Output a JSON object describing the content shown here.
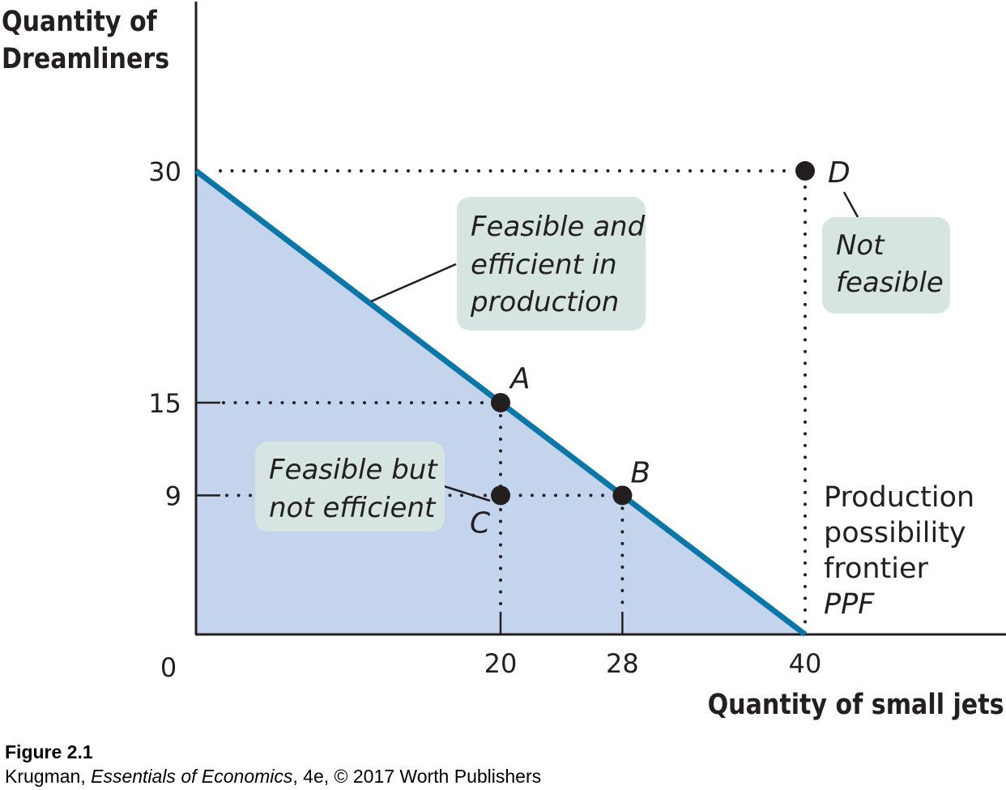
{
  "chart_data": {
    "type": "line",
    "xlabel": "Quantity of small jets",
    "ylabel_lines": [
      "Quantity of",
      "Dreamliners"
    ],
    "xlim": [
      0,
      40
    ],
    "ylim": [
      0,
      30
    ],
    "origin_label": "0",
    "x_ticks": [
      20,
      28,
      40
    ],
    "y_ticks": [
      30,
      15,
      9
    ],
    "series": [
      {
        "label": "Production possibility frontier PPF",
        "x": [
          0,
          40
        ],
        "y": [
          30,
          0
        ]
      }
    ],
    "frontier_label_lines": [
      "Production",
      "possibility",
      "frontier",
      "PPF"
    ],
    "points": [
      {
        "label": "A",
        "x": 20,
        "y": 15
      },
      {
        "label": "B",
        "x": 28,
        "y": 9
      },
      {
        "label": "C",
        "x": 20,
        "y": 9
      },
      {
        "label": "D",
        "x": 40,
        "y": 30
      }
    ],
    "annotations": [
      {
        "id": "efficient",
        "lines": [
          "Feasible and",
          "efficient in",
          "production"
        ]
      },
      {
        "id": "not-feasible",
        "lines": [
          "Not",
          "feasible"
        ]
      },
      {
        "id": "inefficient",
        "lines": [
          "Feasible but",
          "not efficient"
        ]
      }
    ],
    "colors": {
      "frontier": "#0a77a8",
      "feasible_region": "#c5d4ed",
      "callout_box": "#d6e4e2",
      "text": "#231f20"
    }
  },
  "caption": {
    "figure": "Figure 2.1",
    "source_prefix": "Krugman, ",
    "source_title": "Essentials of Economics",
    "source_suffix": ", 4e, © 2017 Worth Publishers"
  }
}
